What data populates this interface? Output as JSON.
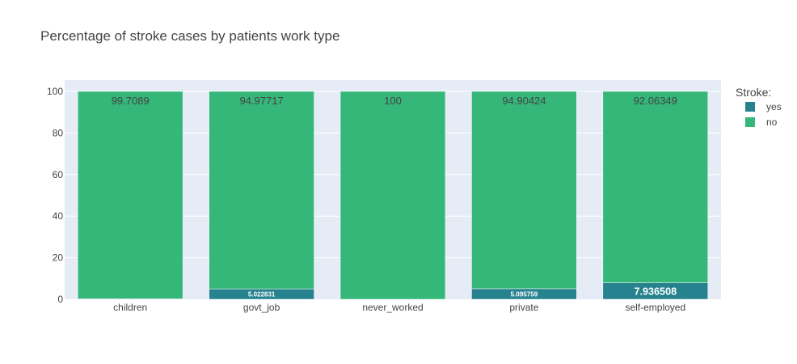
{
  "chart_data": {
    "type": "bar",
    "barmode": "stack",
    "title": "Percentage of stroke cases by patients work type",
    "xlabel": "",
    "ylabel": "",
    "ylim": [
      0,
      100
    ],
    "yticks": [
      0,
      20,
      40,
      60,
      80,
      100
    ],
    "categories": [
      "children",
      "govt_job",
      "never_worked",
      "private",
      "self-employed"
    ],
    "series": [
      {
        "name": "yes",
        "color": "#26828e",
        "values": [
          0.2911,
          5.022831,
          0,
          5.095759,
          7.936508
        ],
        "labels": [
          "",
          "5.022831",
          "",
          "5.095759",
          "7.936508"
        ]
      },
      {
        "name": "no",
        "color": "#35b779",
        "values": [
          99.7089,
          94.97717,
          100,
          94.90424,
          92.06349
        ],
        "labels": [
          "99.7089",
          "94.97717",
          "100",
          "94.90424",
          "92.06349"
        ]
      }
    ],
    "legend": {
      "title": "Stroke:",
      "position": "top-right"
    },
    "grid": true,
    "plot_background": "#e5ecf6"
  }
}
